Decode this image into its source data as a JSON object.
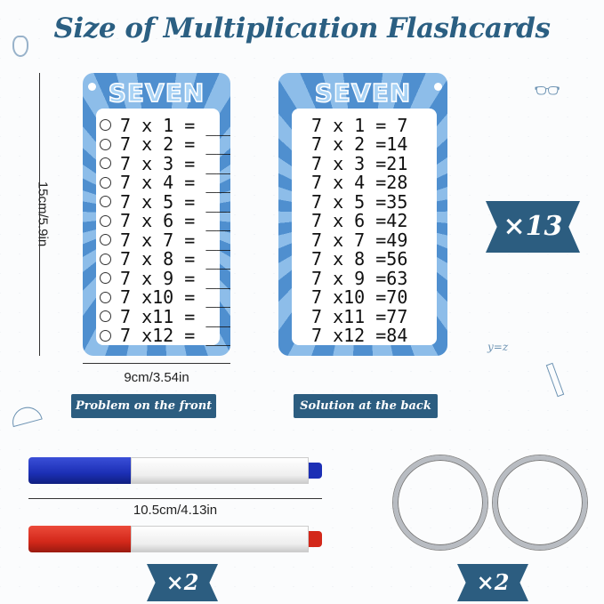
{
  "title": "Size of  Multiplication Flashcards",
  "front_card": {
    "heading": "SEVEN",
    "rows": [
      "7 x 1 = ___",
      "7 x 2 = ___",
      "7 x 3 = ___",
      "7 x 4 = ___",
      "7 x 5 = ___",
      "7 x 6 = ___",
      "7 x 7 = ___",
      "7 x 8 = ___",
      "7 x 9 = ___",
      "7 x10 = ___",
      "7 x11 = ___",
      "7 x12 = ___"
    ]
  },
  "back_card": {
    "heading": "SEVEN",
    "rows": [
      "7 x 1 = 7",
      "7 x 2 =14",
      "7 x 3 =21",
      "7 x 4 =28",
      "7 x 5 =35",
      "7 x 6 =42",
      "7 x 7 =49",
      "7 x 8 =56",
      "7 x 9 =63",
      "7 x10 =70",
      "7 x11 =77",
      "7 x12 =84"
    ]
  },
  "dimensions": {
    "card_height": "15cm/5.9in",
    "card_width": "9cm/3.54in",
    "marker_length": "10.5cm/4.13in"
  },
  "labels": {
    "front": "Problem on the front",
    "back": "Solution at the back"
  },
  "counts": {
    "cards": "×13",
    "markers": "×2",
    "rings": "×2"
  },
  "doodles": {
    "equation": "y=z"
  },
  "colors": {
    "navy": "#2c5d80",
    "card_blue": "#4f8fcf",
    "marker_blue": "#1c2fb5",
    "marker_red": "#d3281a"
  }
}
